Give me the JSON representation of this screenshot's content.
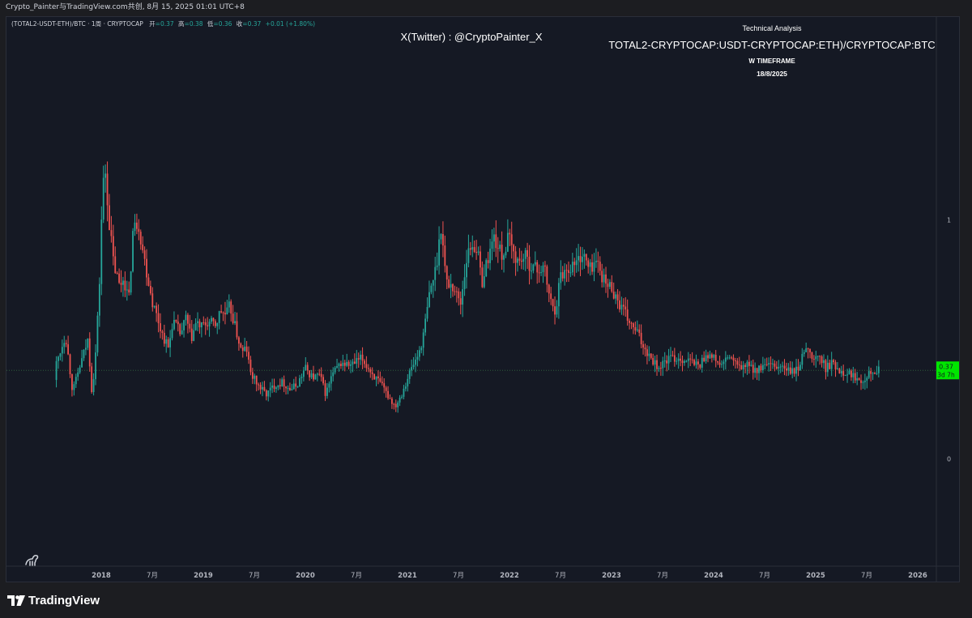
{
  "topbar": {
    "text": "Crypto_Painter与TradingView.com共创, 8月 15, 2025 01:01 UTC+8"
  },
  "symbol_line": {
    "symbol": "(TOTAL2-USDT-ETH)/BTC · 1周 · CRYPTOCAP",
    "open_label": "开",
    "open_value": "=0.37",
    "high_label": "高",
    "high_value": "=0.38",
    "low_label": "低",
    "low_value": "=0.36",
    "close_label": "收",
    "close_value": "=0.37",
    "change": "+0.01 (+1.80%)"
  },
  "watermark": "X(Twitter) : @CryptoPainter_X",
  "annotation": {
    "heading": "Technical Analysis",
    "pair": "TOTAL2-CRYPTOCAP:USDT-CRYPTOCAP:ETH)/CRYPTOCAP:BTC",
    "timeframe": "W TIMEFRAME",
    "date": "18/8/2025"
  },
  "price_label": {
    "value": "0.37",
    "countdown": "3d 7h"
  },
  "brand": {
    "name": "TradingView"
  },
  "colors": {
    "up": "#26a69a",
    "down": "#ef5350",
    "background": "#151924",
    "price_tag": "#00e600",
    "text": "#d1d4dc",
    "axis_text": "#b2b5be"
  },
  "icons": {
    "brand_logo": "tradingview-logo-icon",
    "avatar": "dino-icon"
  },
  "chart_data": {
    "type": "candlestick",
    "title": "",
    "ylim": [
      -0.45,
      1.85
    ],
    "y_ticks": [
      {
        "value": 0,
        "label": "0"
      },
      {
        "value": 1,
        "label": "1"
      }
    ],
    "x_ticks": [
      "2018",
      "7月",
      "2019",
      "7月",
      "2020",
      "7月",
      "2021",
      "7月",
      "2022",
      "7月",
      "2023",
      "7月",
      "2024",
      "7月",
      "2025",
      "7月",
      "2026"
    ],
    "x_range": [
      2017.5,
      2026.2
    ],
    "last_price": 0.37,
    "anchors": [
      [
        2017.56,
        0.33,
        0.4
      ],
      [
        2017.65,
        0.4,
        0.52
      ],
      [
        2017.72,
        0.48,
        0.28
      ],
      [
        2017.8,
        0.3,
        0.4
      ],
      [
        2017.87,
        0.38,
        0.5
      ],
      [
        2017.91,
        0.5,
        0.27
      ],
      [
        2017.95,
        0.29,
        0.47
      ],
      [
        2017.99,
        0.47,
        0.8
      ],
      [
        2018.01,
        0.8,
        1.13
      ],
      [
        2018.04,
        1.13,
        1.2
      ],
      [
        2018.08,
        1.2,
        0.98
      ],
      [
        2018.12,
        0.98,
        0.82
      ],
      [
        2018.18,
        0.82,
        0.72
      ],
      [
        2018.22,
        0.72,
        0.76
      ],
      [
        2018.27,
        0.76,
        0.66
      ],
      [
        2018.31,
        0.66,
        0.95
      ],
      [
        2018.36,
        0.95,
        1.0
      ],
      [
        2018.42,
        1.0,
        0.84
      ],
      [
        2018.5,
        0.84,
        0.66
      ],
      [
        2018.6,
        0.66,
        0.52
      ],
      [
        2018.66,
        0.52,
        0.46
      ],
      [
        2018.7,
        0.46,
        0.58
      ],
      [
        2018.78,
        0.58,
        0.52
      ],
      [
        2018.83,
        0.52,
        0.59
      ],
      [
        2018.88,
        0.59,
        0.5
      ],
      [
        2018.93,
        0.5,
        0.57
      ],
      [
        2018.98,
        0.57,
        0.55
      ],
      [
        2019.05,
        0.55,
        0.57
      ],
      [
        2019.12,
        0.57,
        0.56
      ],
      [
        2019.17,
        0.56,
        0.62
      ],
      [
        2019.22,
        0.62,
        0.6
      ],
      [
        2019.26,
        0.6,
        0.64
      ],
      [
        2019.33,
        0.64,
        0.52
      ],
      [
        2019.38,
        0.52,
        0.44
      ],
      [
        2019.42,
        0.44,
        0.47
      ],
      [
        2019.46,
        0.47,
        0.36
      ],
      [
        2019.55,
        0.36,
        0.3
      ],
      [
        2019.62,
        0.3,
        0.27
      ],
      [
        2019.7,
        0.27,
        0.31
      ],
      [
        2019.78,
        0.31,
        0.32
      ],
      [
        2019.85,
        0.32,
        0.29
      ],
      [
        2019.92,
        0.29,
        0.31
      ],
      [
        2020.0,
        0.31,
        0.38
      ],
      [
        2020.07,
        0.38,
        0.34
      ],
      [
        2020.14,
        0.34,
        0.35
      ],
      [
        2020.2,
        0.35,
        0.27
      ],
      [
        2020.26,
        0.27,
        0.35
      ],
      [
        2020.35,
        0.35,
        0.4
      ],
      [
        2020.45,
        0.4,
        0.39
      ],
      [
        2020.55,
        0.39,
        0.42
      ],
      [
        2020.65,
        0.42,
        0.36
      ],
      [
        2020.72,
        0.36,
        0.32
      ],
      [
        2020.8,
        0.32,
        0.27
      ],
      [
        2020.88,
        0.27,
        0.22
      ],
      [
        2020.94,
        0.22,
        0.27
      ],
      [
        2021.03,
        0.27,
        0.37
      ],
      [
        2021.1,
        0.37,
        0.43
      ],
      [
        2021.15,
        0.43,
        0.5
      ],
      [
        2021.22,
        0.5,
        0.7
      ],
      [
        2021.28,
        0.7,
        0.8
      ],
      [
        2021.33,
        0.8,
        0.98
      ],
      [
        2021.38,
        0.98,
        0.74
      ],
      [
        2021.45,
        0.74,
        0.72
      ],
      [
        2021.52,
        0.72,
        0.65
      ],
      [
        2021.58,
        0.65,
        0.84
      ],
      [
        2021.63,
        0.84,
        0.9
      ],
      [
        2021.68,
        0.9,
        0.88
      ],
      [
        2021.73,
        0.88,
        0.74
      ],
      [
        2021.8,
        0.74,
        0.86
      ],
      [
        2021.85,
        0.86,
        0.93
      ],
      [
        2021.9,
        0.93,
        0.87
      ],
      [
        2021.94,
        0.87,
        0.85
      ],
      [
        2021.99,
        0.85,
        0.93
      ],
      [
        2022.03,
        0.93,
        0.87
      ],
      [
        2022.09,
        0.87,
        0.82
      ],
      [
        2022.14,
        0.82,
        0.85
      ],
      [
        2022.21,
        0.85,
        0.81
      ],
      [
        2022.28,
        0.81,
        0.79
      ],
      [
        2022.34,
        0.79,
        0.8
      ],
      [
        2022.4,
        0.8,
        0.66
      ],
      [
        2022.45,
        0.66,
        0.62
      ],
      [
        2022.5,
        0.62,
        0.77
      ],
      [
        2022.58,
        0.77,
        0.8
      ],
      [
        2022.65,
        0.8,
        0.82
      ],
      [
        2022.72,
        0.82,
        0.86
      ],
      [
        2022.78,
        0.86,
        0.79
      ],
      [
        2022.84,
        0.79,
        0.83
      ],
      [
        2022.88,
        0.83,
        0.8
      ],
      [
        2022.94,
        0.8,
        0.73
      ],
      [
        2023.0,
        0.73,
        0.72
      ],
      [
        2023.06,
        0.72,
        0.66
      ],
      [
        2023.14,
        0.66,
        0.6
      ],
      [
        2023.2,
        0.6,
        0.55
      ],
      [
        2023.25,
        0.55,
        0.53
      ],
      [
        2023.3,
        0.53,
        0.48
      ],
      [
        2023.38,
        0.48,
        0.43
      ],
      [
        2023.46,
        0.43,
        0.38
      ],
      [
        2023.56,
        0.38,
        0.42
      ],
      [
        2023.66,
        0.42,
        0.42
      ],
      [
        2023.76,
        0.42,
        0.41
      ],
      [
        2023.86,
        0.41,
        0.39
      ],
      [
        2023.93,
        0.39,
        0.44
      ],
      [
        2024.0,
        0.44,
        0.42
      ],
      [
        2024.08,
        0.42,
        0.39
      ],
      [
        2024.16,
        0.39,
        0.43
      ],
      [
        2024.24,
        0.43,
        0.38
      ],
      [
        2024.33,
        0.38,
        0.39
      ],
      [
        2024.42,
        0.39,
        0.37
      ],
      [
        2024.52,
        0.37,
        0.39
      ],
      [
        2024.6,
        0.39,
        0.38
      ],
      [
        2024.66,
        0.38,
        0.39
      ],
      [
        2024.72,
        0.39,
        0.37
      ],
      [
        2024.8,
        0.37,
        0.36
      ],
      [
        2024.86,
        0.36,
        0.41
      ],
      [
        2024.91,
        0.41,
        0.49
      ],
      [
        2024.96,
        0.49,
        0.41
      ],
      [
        2025.03,
        0.41,
        0.43
      ],
      [
        2025.1,
        0.43,
        0.38
      ],
      [
        2025.16,
        0.38,
        0.4
      ],
      [
        2025.24,
        0.4,
        0.37
      ],
      [
        2025.32,
        0.37,
        0.36
      ],
      [
        2025.4,
        0.36,
        0.34
      ],
      [
        2025.46,
        0.34,
        0.33
      ],
      [
        2025.51,
        0.33,
        0.36
      ],
      [
        2025.57,
        0.36,
        0.37
      ],
      [
        2025.62,
        0.37,
        0.37
      ]
    ]
  }
}
